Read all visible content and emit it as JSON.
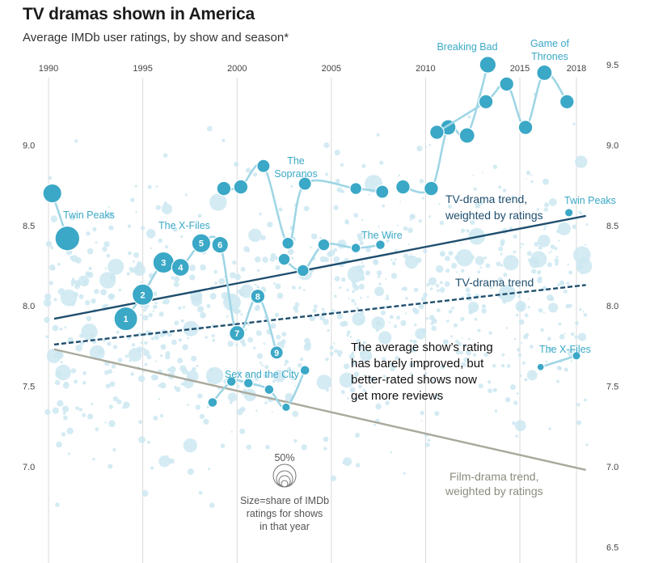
{
  "title": "TV dramas shown in America",
  "subtitle": "Average IMDb user ratings, by show and season*",
  "chart_data": {
    "type": "scatter",
    "title": "TV dramas shown in America",
    "subtitle": "Average IMDb user ratings, by show and season*",
    "x_ticks": [
      1990,
      1995,
      2000,
      2005,
      2010,
      2015,
      2018
    ],
    "y_ticks": [
      7.0,
      7.5,
      8.0,
      8.5,
      9.0,
      9.5
    ],
    "y_tick_labels_left": [
      "7.0",
      "7.5",
      "8.0",
      "8.5",
      "9.0"
    ],
    "y_tick_labels_right": [
      "6.5",
      "7.0",
      "7.5",
      "8.0",
      "8.5",
      "9.0",
      "9.5"
    ],
    "xlim": [
      1989.7,
      2018.8
    ],
    "ylim": [
      6.45,
      9.55
    ],
    "grid": "vertical lines at x ticks",
    "colors": {
      "highlight": "#3aa8c6",
      "highlight_line": "#9fd6e5",
      "background_points": "#cde8f1",
      "tv_trend": "#1f4e6e",
      "film_trend": "#a9a99c",
      "gridline": "#d9d9d9"
    },
    "trend_lines": [
      {
        "name": "TV-drama trend, weighted by ratings",
        "style": "solid",
        "points": [
          [
            1990.3,
            7.92
          ],
          [
            2018.5,
            8.56
          ]
        ]
      },
      {
        "name": "TV-drama trend",
        "style": "dashed",
        "points": [
          [
            1990.3,
            7.76
          ],
          [
            2018.5,
            8.13
          ]
        ]
      },
      {
        "name": "Film-drama trend, weighted by ratings",
        "style": "solid",
        "points": [
          [
            1990.3,
            7.73
          ],
          [
            2018.5,
            6.98
          ]
        ]
      }
    ],
    "highlighted_series": [
      {
        "name": "Twin Peaks",
        "points": [
          {
            "x": 1990.2,
            "y": 8.7,
            "size": 12
          },
          {
            "x": 1991.0,
            "y": 8.42,
            "size": 17
          }
        ]
      },
      {
        "name": "Twin Peaks",
        "points": [
          {
            "x": 2017.6,
            "y": 8.58,
            "size": 3
          }
        ]
      },
      {
        "name": "The X-Files",
        "points": [
          {
            "x": 1994.1,
            "y": 7.92,
            "size": 16,
            "label": "1"
          },
          {
            "x": 1995.0,
            "y": 8.07,
            "size": 14,
            "label": "2"
          },
          {
            "x": 1996.1,
            "y": 8.27,
            "size": 14,
            "label": "3"
          },
          {
            "x": 1997.0,
            "y": 8.24,
            "size": 11,
            "label": "4"
          },
          {
            "x": 1998.1,
            "y": 8.39,
            "size": 12,
            "label": "5"
          },
          {
            "x": 1999.1,
            "y": 8.38,
            "size": 10,
            "label": "6"
          },
          {
            "x": 2000.0,
            "y": 7.83,
            "size": 9,
            "label": "7"
          },
          {
            "x": 2001.1,
            "y": 8.06,
            "size": 8,
            "label": "8"
          },
          {
            "x": 2002.1,
            "y": 7.71,
            "size": 7,
            "label": "9"
          }
        ]
      },
      {
        "name": "The X-Files",
        "points": [
          {
            "x": 2016.1,
            "y": 7.62,
            "size": 2
          },
          {
            "x": 2018.0,
            "y": 7.69,
            "size": 3
          }
        ]
      },
      {
        "name": "Sex and the City",
        "points": [
          {
            "x": 1998.7,
            "y": 7.4,
            "size": 4
          },
          {
            "x": 1999.7,
            "y": 7.53,
            "size": 4
          },
          {
            "x": 2000.6,
            "y": 7.52,
            "size": 4
          },
          {
            "x": 2001.7,
            "y": 7.48,
            "size": 4
          },
          {
            "x": 2002.6,
            "y": 7.37,
            "size": 3
          },
          {
            "x": 2003.6,
            "y": 7.6,
            "size": 4
          }
        ]
      },
      {
        "name": "The Sopranos",
        "points": [
          {
            "x": 1999.3,
            "y": 8.73,
            "size": 8
          },
          {
            "x": 2000.2,
            "y": 8.74,
            "size": 8
          },
          {
            "x": 2001.4,
            "y": 8.87,
            "size": 7
          },
          {
            "x": 2002.7,
            "y": 8.39,
            "size": 6
          },
          {
            "x": 2003.6,
            "y": 8.76,
            "size": 7
          },
          {
            "x": 2006.3,
            "y": 8.73,
            "size": 6
          },
          {
            "x": 2007.7,
            "y": 8.71,
            "size": 7
          }
        ]
      },
      {
        "name": "The Wire",
        "points": [
          {
            "x": 2002.5,
            "y": 8.29,
            "size": 6
          },
          {
            "x": 2003.5,
            "y": 8.22,
            "size": 6
          },
          {
            "x": 2004.6,
            "y": 8.38,
            "size": 6
          },
          {
            "x": 2006.3,
            "y": 8.36,
            "size": 4
          },
          {
            "x": 2007.6,
            "y": 8.38,
            "size": 4
          }
        ]
      },
      {
        "name": "Breaking Bad",
        "points": [
          {
            "x": 2008.8,
            "y": 8.74,
            "size": 8
          },
          {
            "x": 2010.3,
            "y": 8.73,
            "size": 8
          },
          {
            "x": 2011.2,
            "y": 9.11,
            "size": 9
          },
          {
            "x": 2012.2,
            "y": 9.06,
            "size": 9
          },
          {
            "x": 2013.3,
            "y": 9.5,
            "size": 10
          }
        ]
      },
      {
        "name": "Game of Thrones",
        "points": [
          {
            "x": 2010.6,
            "y": 9.08,
            "size": 8
          },
          {
            "x": 2013.2,
            "y": 9.27,
            "size": 8
          },
          {
            "x": 2014.3,
            "y": 9.38,
            "size": 8
          },
          {
            "x": 2015.3,
            "y": 9.11,
            "size": 8
          },
          {
            "x": 2016.3,
            "y": 9.45,
            "size": 9
          },
          {
            "x": 2017.5,
            "y": 9.27,
            "size": 8
          }
        ]
      }
    ],
    "labels": {
      "twin_peaks_1": "Twin Peaks",
      "twin_peaks_2": "Twin Peaks",
      "x_files_1": "The X-Files",
      "x_files_2": "The X-Files",
      "sopranos_line1": "The",
      "sopranos_line2": "Sopranos",
      "wire": "The Wire",
      "satc": "Sex and the City",
      "breaking_bad": "Breaking Bad",
      "got_line1": "Game of",
      "got_line2": "Thrones",
      "tv_weighted_line1": "TV-drama trend,",
      "tv_weighted_line2": "weighted by ratings",
      "tv_trend": "TV-drama trend",
      "film_line1": "Film-drama trend,",
      "film_line2": "weighted by ratings"
    },
    "annotation": [
      "The average show’s rating",
      "has barely improved, but",
      "better-rated shows now",
      "get more reviews"
    ],
    "size_legend": {
      "value_label": "50%",
      "text": [
        "Size=share of IMDb",
        "ratings for shows",
        "in that year"
      ]
    }
  }
}
